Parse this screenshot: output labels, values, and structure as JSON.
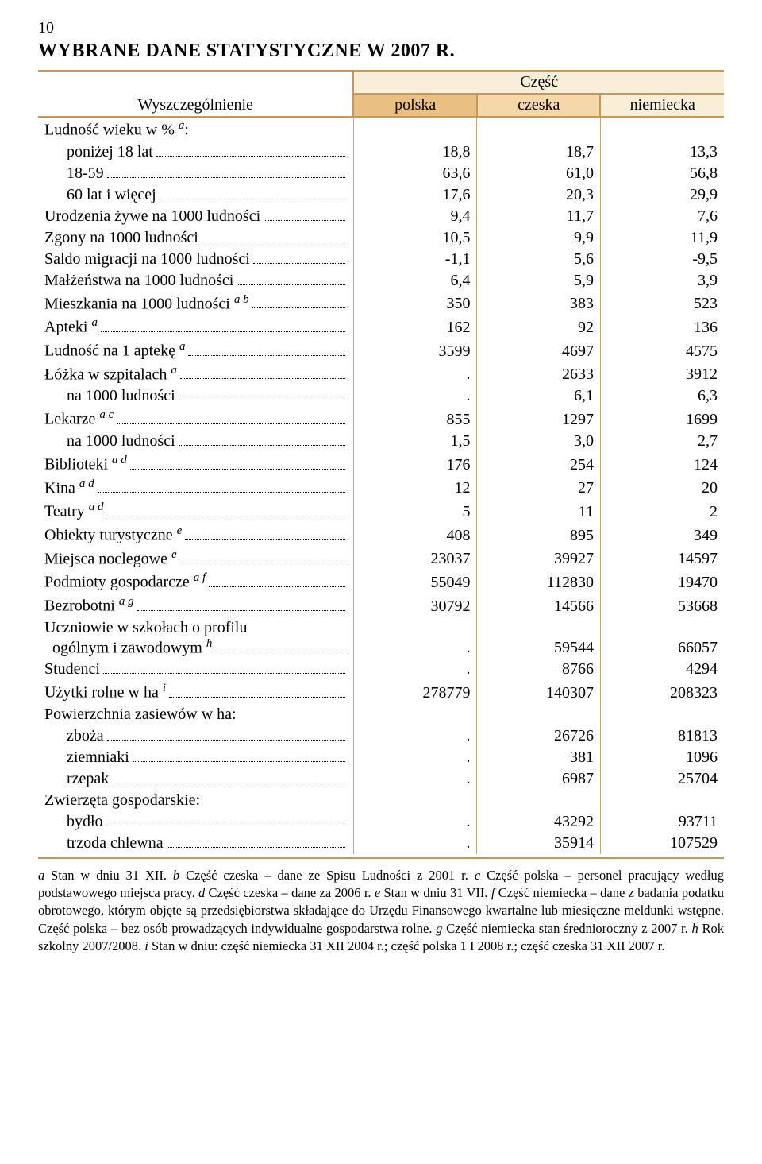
{
  "page_number": "10",
  "title": "WYBRANE DANE STATYSTYCZNE W 2007 R.",
  "colors": {
    "rule": "#c89850",
    "bg_polska": "#eabf84",
    "bg_czeska": "#f4d8ac",
    "bg_niemiecka": "#f9eed7",
    "cell_sep": "#bfa97a"
  },
  "header": {
    "spec": "Wyszczególnienie",
    "part": "Część",
    "polska": "polska",
    "czeska": "czeska",
    "niemiecka": "niemiecka"
  },
  "rows": [
    {
      "label_html": "Ludność wieku w % <sup>a</sup>:",
      "nodots": true
    },
    {
      "label_html": "poniżej 18 lat",
      "indent": 1,
      "p": "18,8",
      "c": "18,7",
      "n": "13,3"
    },
    {
      "label_html": "18-59",
      "indent": 1,
      "p": "63,6",
      "c": "61,0",
      "n": "56,8"
    },
    {
      "label_html": "60 lat i więcej",
      "indent": 1,
      "p": "17,6",
      "c": "20,3",
      "n": "29,9"
    },
    {
      "label_html": "Urodzenia żywe na 1000 ludności",
      "p": "9,4",
      "c": "11,7",
      "n": "7,6"
    },
    {
      "label_html": "Zgony na 1000 ludności",
      "p": "10,5",
      "c": "9,9",
      "n": "11,9"
    },
    {
      "label_html": "Saldo migracji na 1000 ludności",
      "p": "-1,1",
      "c": "5,6",
      "n": "-9,5"
    },
    {
      "label_html": "Małżeństwa na 1000 ludności",
      "p": "6,4",
      "c": "5,9",
      "n": "3,9"
    },
    {
      "label_html": "Mieszkania na 1000 ludności <sup>a b</sup>",
      "p": "350",
      "c": "383",
      "n": "523"
    },
    {
      "label_html": "Apteki <sup>a</sup>",
      "p": "162",
      "c": "92",
      "n": "136"
    },
    {
      "label_html": "Ludność na 1 aptekę <sup>a</sup>",
      "p": "3599",
      "c": "4697",
      "n": "4575"
    },
    {
      "label_html": "Łóżka w szpitalach <sup>a</sup>",
      "p": ".",
      "c": "2633",
      "n": "3912"
    },
    {
      "label_html": "na 1000 ludności",
      "indent": 1,
      "p": ".",
      "c": "6,1",
      "n": "6,3"
    },
    {
      "label_html": "Lekarze <sup>a c</sup>",
      "p": "855",
      "c": "1297",
      "n": "1699"
    },
    {
      "label_html": "na 1000 ludności",
      "indent": 1,
      "p": "1,5",
      "c": "3,0",
      "n": "2,7"
    },
    {
      "label_html": "Biblioteki <sup>a d</sup>",
      "p": "176",
      "c": "254",
      "n": "124"
    },
    {
      "label_html": "Kina <sup>a d</sup>",
      "p": "12",
      "c": "27",
      "n": "20"
    },
    {
      "label_html": "Teatry <sup>a d</sup>",
      "p": "5",
      "c": "11",
      "n": "2"
    },
    {
      "label_html": "Obiekty turystyczne <sup>e</sup>",
      "p": "408",
      "c": "895",
      "n": "349"
    },
    {
      "label_html": "Miejsca noclegowe <sup>e</sup>",
      "p": "23037",
      "c": "39927",
      "n": "14597"
    },
    {
      "label_html": "Podmioty gospodarcze <sup>a f</sup>",
      "p": "55049",
      "c": "112830",
      "n": "19470"
    },
    {
      "label_html": "Bezrobotni <sup>a g</sup>",
      "p": "30792",
      "c": "14566",
      "n": "53668"
    },
    {
      "label_html": "Uczniowie w szkołach o profilu<br>&nbsp;&nbsp;ogólnym i zawodowym <sup>h</sup>",
      "multiline": true,
      "p": ".",
      "c": "59544",
      "n": "66057"
    },
    {
      "label_html": "Studenci",
      "p": ".",
      "c": "8766",
      "n": "4294"
    },
    {
      "label_html": "Użytki rolne w ha <sup>i</sup>",
      "p": "278779",
      "c": "140307",
      "n": "208323"
    },
    {
      "label_html": "Powierzchnia zasiewów w ha:",
      "nodots": true
    },
    {
      "label_html": "zboża",
      "indent": 1,
      "p": ".",
      "c": "26726",
      "n": "81813"
    },
    {
      "label_html": "ziemniaki",
      "indent": 1,
      "p": ".",
      "c": "381",
      "n": "1096"
    },
    {
      "label_html": "rzepak",
      "indent": 1,
      "p": ".",
      "c": "6987",
      "n": "25704"
    },
    {
      "label_html": "Zwierzęta gospodarskie:",
      "nodots": true
    },
    {
      "label_html": "bydło",
      "indent": 1,
      "p": ".",
      "c": "43292",
      "n": "93711"
    },
    {
      "label_html": "trzoda chlewna",
      "indent": 1,
      "p": ".",
      "c": "35914",
      "n": "107529"
    }
  ],
  "footnotes_html": "<i>a</i> Stan w dniu 31 XII. <i>b</i> Część czeska – dane ze Spisu Ludności z 2001 r. <i>c</i> Część polska – personel pracujący według podstawowego miejsca pracy. <i>d</i> Część czeska – dane za 2006 r. <i>e</i> Stan w dniu 31 VII. <i>f</i> Część niemiecka – dane z badania podatku obrotowego, którym objęte są przedsiębiorstwa składające do Urzędu Finansowego kwartalne lub miesięczne meldunki wstępne. Część polska – bez osób prowadzących indywidualne gospodarstwa rolne. <i>g</i> Część niemiecka stan średnioroczny z 2007 r. <i>h</i> Rok szkolny 2007/2008. <i>i</i> Stan w dniu: część niemiecka 31 XII 2004 r.; część polska 1 I 2008 r.; część czeska 31 XII 2007 r."
}
